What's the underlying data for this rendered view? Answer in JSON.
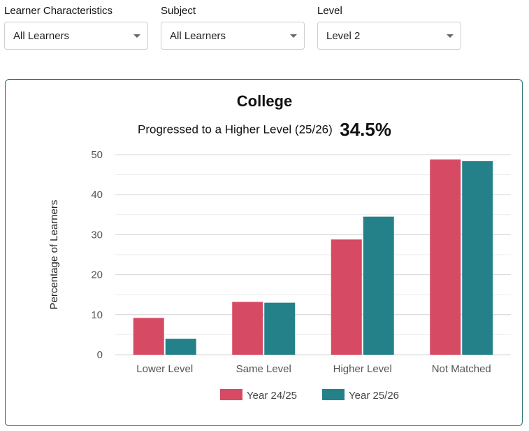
{
  "filters": [
    {
      "label": "Learner Characteristics",
      "value": "All Learners"
    },
    {
      "label": "Subject",
      "value": "All Learners"
    },
    {
      "label": "Level",
      "value": "Level 2"
    }
  ],
  "card": {
    "title": "College",
    "subtitle": "Progressed to a Higher Level (25/26)",
    "highlight_value": "34.5%"
  },
  "colors": {
    "series1": "#d64a63",
    "series2": "#24818a",
    "card_border": "#2a6e72",
    "grid": "#dddddd"
  },
  "chart_data": {
    "type": "bar",
    "categories": [
      "Lower Level",
      "Same Level",
      "Higher Level",
      "Not Matched"
    ],
    "series": [
      {
        "name": "Year 24/25",
        "values": [
          9.2,
          13.2,
          28.8,
          48.8
        ]
      },
      {
        "name": "Year 25/26",
        "values": [
          4.0,
          13.0,
          34.5,
          48.4
        ]
      }
    ],
    "ylabel": "Percentage of Learners",
    "xlabel": "",
    "ylim": [
      0,
      50
    ],
    "yticks": [
      0,
      10,
      20,
      30,
      40,
      50
    ],
    "legend_position": "bottom"
  }
}
